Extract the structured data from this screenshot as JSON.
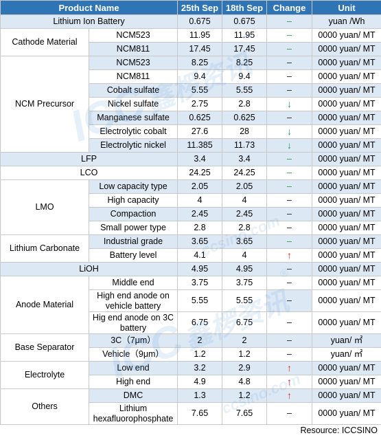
{
  "headers": [
    "Product Name",
    "25th Sep",
    "18th Sep",
    "Change",
    "Unit"
  ],
  "groups": {
    "cathode": "Cathode Material",
    "ncm": "NCM Precursor",
    "lmo": "LMO",
    "lc": "Lithium Carbonate",
    "anode": "Anode Material",
    "sep": "Base Separator",
    "elec": "Electrolyte",
    "others": "Others"
  },
  "rows": [
    {
      "name": "Lithium Ion Battery",
      "v1": "0.675",
      "v2": "0.675",
      "change": "–",
      "unit": "yuan /Wh"
    },
    {
      "name": "NCM523",
      "v1": "11.95",
      "v2": "11.95",
      "change": "–",
      "unit": "0000 yuan/ MT"
    },
    {
      "name": "NCM811",
      "v1": "17.45",
      "v2": "17.45",
      "change": "–",
      "unit": "0000 yuan/ MT"
    },
    {
      "name": "NCM523",
      "v1": "8.25",
      "v2": "8.25",
      "change": "–",
      "unit": "0000 yuan/ MT"
    },
    {
      "name": "NCM811",
      "v1": "9.4",
      "v2": "9.4",
      "change": "–",
      "unit": "0000 yuan/ MT"
    },
    {
      "name": "Cobalt sulfate",
      "v1": "5.55",
      "v2": "5.55",
      "change": "–",
      "unit": "0000 yuan/ MT"
    },
    {
      "name": "Nickel sulfate",
      "v1": "2.75",
      "v2": "2.8",
      "change": "↓",
      "unit": "0000 yuan/ MT"
    },
    {
      "name": "Manganese sulfate",
      "v1": "0.625",
      "v2": "0.625",
      "change": "–",
      "unit": "0000 yuan/ MT"
    },
    {
      "name": "Electrolytic cobalt",
      "v1": "27.6",
      "v2": "28",
      "change": "↓",
      "unit": "0000 yuan/ MT"
    },
    {
      "name": "Electrolytic nickel",
      "v1": "11.385",
      "v2": "11.73",
      "change": "↓",
      "unit": "0000 yuan/ MT"
    },
    {
      "name": "LFP",
      "v1": "3.4",
      "v2": "3.4",
      "change": "–",
      "unit": "0000 yuan/ MT"
    },
    {
      "name": "LCO",
      "v1": "24.25",
      "v2": "24.25",
      "change": "–",
      "unit": "0000 yuan/ MT"
    },
    {
      "name": "Low capacity type",
      "v1": "2.05",
      "v2": "2.05",
      "change": "–",
      "unit": "0000 yuan/ MT"
    },
    {
      "name": "High capacity",
      "v1": "4",
      "v2": "4",
      "change": "–",
      "unit": "0000 yuan/ MT"
    },
    {
      "name": "Compaction",
      "v1": "2.45",
      "v2": "2.45",
      "change": "–",
      "unit": "0000 yuan/ MT"
    },
    {
      "name": "Small power type",
      "v1": "2.8",
      "v2": "2.8",
      "change": "–",
      "unit": "0000 yuan/ MT"
    },
    {
      "name": "Industrial grade",
      "v1": "3.65",
      "v2": "3.65",
      "change": "–",
      "unit": "0000 yuan/ MT"
    },
    {
      "name": "Battery level",
      "v1": "4.1",
      "v2": "4",
      "change": "↑",
      "unit": "0000 yuan/ MT"
    },
    {
      "name": "LiOH",
      "v1": "4.95",
      "v2": "4.95",
      "change": "–",
      "unit": "0000 yuan/ MT"
    },
    {
      "name": "Middle end",
      "v1": "3.75",
      "v2": "3.75",
      "change": "–",
      "unit": "0000 yuan/ MT"
    },
    {
      "name": "High end anode on vehicle battery",
      "v1": "5.55",
      "v2": "5.55",
      "change": "–",
      "unit": "0000 yuan/ MT"
    },
    {
      "name": "Hig end anode on 3C battery",
      "v1": "6.75",
      "v2": "6.75",
      "change": "–",
      "unit": "0000 yuan/ MT"
    },
    {
      "name": "3C（7μm）",
      "v1": "2",
      "v2": "2",
      "change": "–",
      "unit": "yuan/ ㎡"
    },
    {
      "name": "Vehicle（9μm）",
      "v1": "1.2",
      "v2": "1.2",
      "change": "–",
      "unit": "yuan/ ㎡"
    },
    {
      "name": "Low end",
      "v1": "3.2",
      "v2": "2.9",
      "change": "↑",
      "unit": "0000 yuan/ MT"
    },
    {
      "name": "High end",
      "v1": "4.9",
      "v2": "4.8",
      "change": "↑",
      "unit": "0000 yuan/ MT"
    },
    {
      "name": "DMC",
      "v1": "1.3",
      "v2": "1.2",
      "change": "↑",
      "unit": "0000 yuan/ MT"
    },
    {
      "name": "Lithium hexafluorophosphate",
      "v1": "7.65",
      "v2": "7.65",
      "change": "–",
      "unit": "0000 yuan/ MT"
    }
  ],
  "source": "Resource: ICCSINO",
  "watermark": {
    "logo": "ICC",
    "brand": "鑫椤资讯",
    "site": "ccsino.com",
    "mark": "®"
  },
  "colors": {
    "header": "#2f75b5",
    "shade": "#dde8f5",
    "up": "#ee1c1c",
    "down": "#13a34a",
    "border": "#c8c8c8"
  }
}
